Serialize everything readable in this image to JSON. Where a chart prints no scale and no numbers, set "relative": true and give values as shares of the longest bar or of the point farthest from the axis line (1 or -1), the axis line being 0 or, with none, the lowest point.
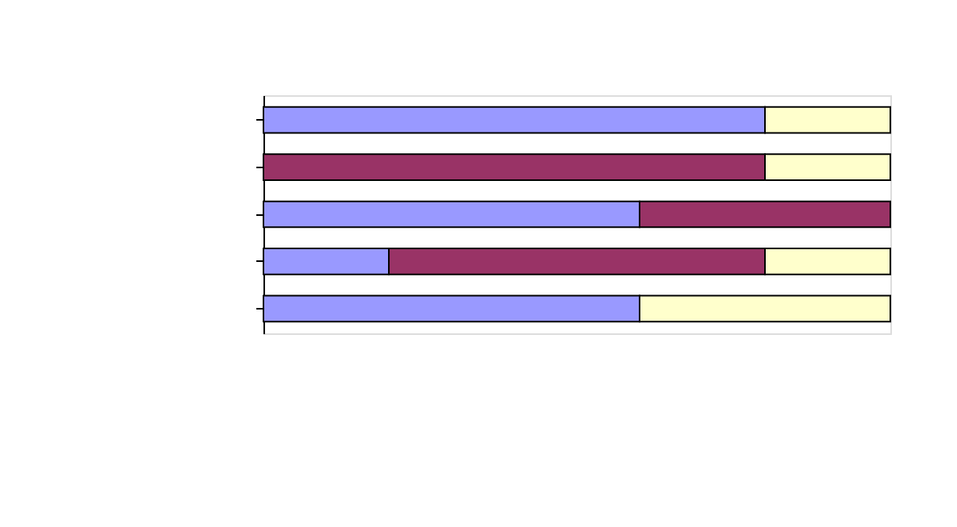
{
  "chart_data": {
    "type": "bar",
    "orientation": "horizontal",
    "stacked": true,
    "relative": true,
    "categories": [
      null,
      null,
      null,
      null,
      null
    ],
    "series": [
      {
        "color": "#9999ff",
        "values": [
          0.8,
          null,
          0.6,
          0.2,
          0.6
        ]
      },
      {
        "color": "#993366",
        "values": [
          null,
          0.8,
          0.4,
          0.6,
          null
        ]
      },
      {
        "color": "#ffffcc",
        "values": [
          0.2,
          0.2,
          null,
          0.2,
          0.4
        ]
      }
    ]
  }
}
